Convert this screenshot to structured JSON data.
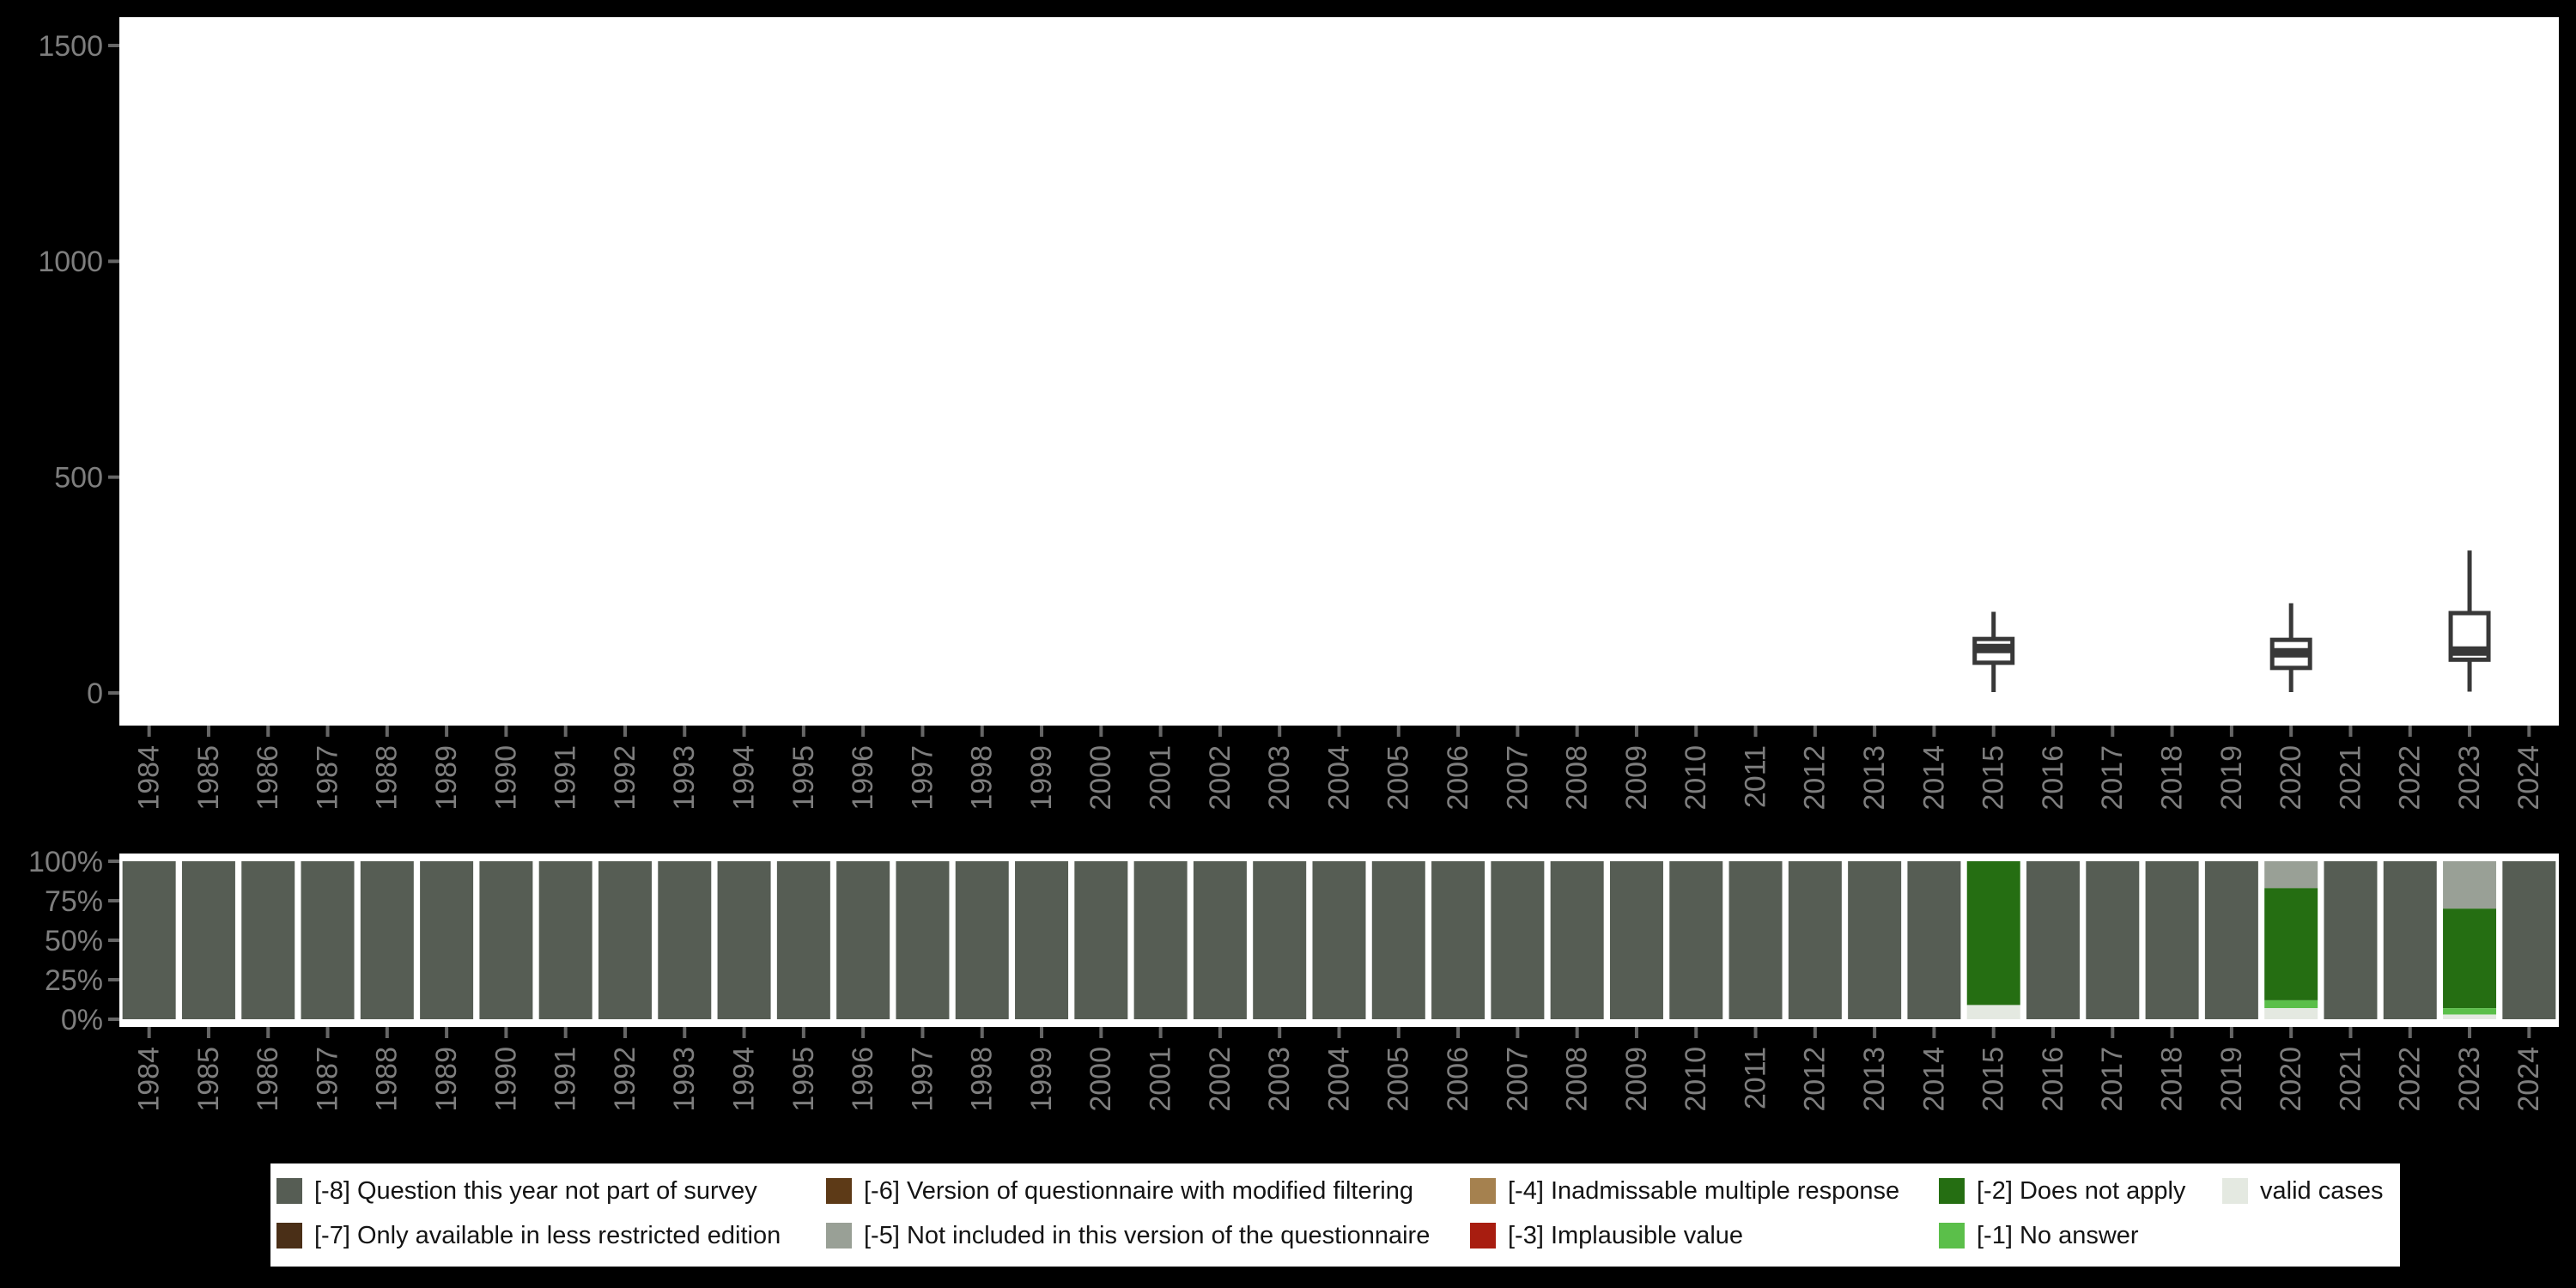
{
  "page": {
    "background": "#000000",
    "plot_background": "#FFFFFF",
    "axis_text_color": "#7E7E7E",
    "tick_color": "#666666",
    "box_stroke_color": "#383838"
  },
  "chart_data": [
    {
      "type": "boxplot",
      "title": "",
      "xlabel": "",
      "ylabel": "",
      "ylim": [
        0,
        1500
      ],
      "yticks": [
        0,
        500,
        1000,
        1500
      ],
      "grid": false,
      "x_categories": [
        "1984",
        "1985",
        "1986",
        "1987",
        "1988",
        "1989",
        "1990",
        "1991",
        "1992",
        "1993",
        "1994",
        "1995",
        "1996",
        "1997",
        "1998",
        "1999",
        "2000",
        "2001",
        "2002",
        "2003",
        "2004",
        "2005",
        "2006",
        "2007",
        "2008",
        "2009",
        "2010",
        "2011",
        "2012",
        "2013",
        "2014",
        "2015",
        "2016",
        "2017",
        "2018",
        "2019",
        "2020",
        "2021",
        "2022",
        "2023",
        "2024"
      ],
      "series": [
        {
          "category": "2015",
          "min": 2,
          "q1": 70,
          "median": 103,
          "q3": 125,
          "max": 188
        },
        {
          "category": "2020",
          "min": 2,
          "q1": 58,
          "median": 93,
          "q3": 123,
          "max": 208
        },
        {
          "category": "2023",
          "min": 3,
          "q1": 77,
          "median": 97,
          "q3": 185,
          "max": 330
        }
      ]
    },
    {
      "type": "bar",
      "stacked": true,
      "title": "",
      "xlabel": "",
      "ylabel": "",
      "ylim": [
        0,
        100
      ],
      "ytick_labels": [
        "100%",
        "75%",
        "50%",
        "25%",
        "0%"
      ],
      "ytick_values": [
        100,
        75,
        50,
        25,
        0
      ],
      "grid": false,
      "x_categories": [
        "1984",
        "1985",
        "1986",
        "1987",
        "1988",
        "1989",
        "1990",
        "1991",
        "1992",
        "1993",
        "1994",
        "1995",
        "1996",
        "1997",
        "1998",
        "1999",
        "2000",
        "2001",
        "2002",
        "2003",
        "2004",
        "2005",
        "2006",
        "2007",
        "2008",
        "2009",
        "2010",
        "2011",
        "2012",
        "2013",
        "2014",
        "2015",
        "2016",
        "2017",
        "2018",
        "2019",
        "2020",
        "2021",
        "2022",
        "2023",
        "2024"
      ],
      "default_segments": [
        {
          "key": "-8",
          "pct": 100
        }
      ],
      "overrides": {
        "2015": [
          {
            "key": "-2",
            "pct": 91
          },
          {
            "key": "valid",
            "pct": 9
          }
        ],
        "2020": [
          {
            "key": "-5",
            "pct": 17
          },
          {
            "key": "-2",
            "pct": 71
          },
          {
            "key": "-1",
            "pct": 5
          },
          {
            "key": "valid",
            "pct": 7
          }
        ],
        "2023": [
          {
            "key": "-5",
            "pct": 30
          },
          {
            "key": "-2",
            "pct": 63
          },
          {
            "key": "-1",
            "pct": 4
          },
          {
            "key": "valid",
            "pct": 3
          }
        ]
      }
    }
  ],
  "legend": {
    "background": "#FFFFFF",
    "text_color": "#141414",
    "items": [
      {
        "code": "-8",
        "label": "[-8] Question this year not part of survey",
        "color": "#565D54",
        "col": 0,
        "row": 0
      },
      {
        "code": "-7",
        "label": "[-7] Only available in less restricted edition",
        "color": "#4A2F17",
        "col": 0,
        "row": 1
      },
      {
        "code": "-6",
        "label": "[-6] Version of questionnaire with modified filtering",
        "color": "#5D3A17",
        "col": 1,
        "row": 0
      },
      {
        "code": "-5",
        "label": "[-5] Not included in this version of the questionnaire",
        "color": "#99A096",
        "col": 1,
        "row": 1
      },
      {
        "code": "-4",
        "label": "[-4] Inadmissable multiple response",
        "color": "#A5814F",
        "col": 2,
        "row": 0
      },
      {
        "code": "-3",
        "label": "[-3] Implausible value",
        "color": "#A81D10",
        "col": 2,
        "row": 1
      },
      {
        "code": "-2",
        "label": "[-2] Does not apply",
        "color": "#256E12",
        "col": 3,
        "row": 0
      },
      {
        "code": "-1",
        "label": "[-1] No answer",
        "color": "#5BBF4A",
        "col": 3,
        "row": 1
      },
      {
        "code": "valid",
        "label": "valid cases",
        "color": "#E4E9E1",
        "col": 4,
        "row": 0
      }
    ]
  }
}
